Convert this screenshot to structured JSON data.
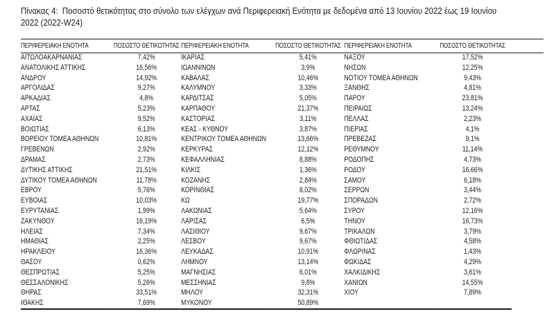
{
  "caption": {
    "line1": "Πίνακας 4:  Ποσοστό θετικότητας στο σύνολο των ελέγχων ανά Περιφερειακή Ενότητα με δεδομένα από 13 Ιουνίου 2022 έως 19 Ιουνίου",
    "line2": "2022 (2022-W24)"
  },
  "colors": {
    "text": "#1b1b1b",
    "rule": "#1b1b1b",
    "background": "#ffffff"
  },
  "table": {
    "header": {
      "region": "ΠΕΡΙΦΕΡΕΙΑΚΗ ΕΝΟΤΗΤΑ",
      "rate": "ΠΟΣΟΣΤΟ ΘΕΤΙΚΟΤΗΤΑΣ"
    },
    "columns": [
      [
        {
          "region": "ΑΙΤΩΛΟΑΚΑΡΝΑΝΙΑΣ",
          "rate": "7,42%"
        },
        {
          "region": "ΑΝΑΤΟΛΙΚΗΣ ΑΤΤΙΚΗΣ",
          "rate": "16,56%"
        },
        {
          "region": "ΑΝΔΡΟΥ",
          "rate": "14,92%"
        },
        {
          "region": "ΑΡΓΟΛΙΔΑΣ",
          "rate": "9,27%"
        },
        {
          "region": "ΑΡΚΑΔΙΑΣ",
          "rate": "4,8%"
        },
        {
          "region": "ΑΡΤΑΣ",
          "rate": "5,23%"
        },
        {
          "region": "ΑΧΑΪΑΣ",
          "rate": "9,52%"
        },
        {
          "region": "ΒΟΙΩΤΙΑΣ",
          "rate": "6,13%"
        },
        {
          "region": "ΒΟΡΕΙΟΥ ΤΟΜΕΑ ΑΘΗΝΩΝ",
          "rate": "10,81%"
        },
        {
          "region": "ΓΡΕΒΕΝΩΝ",
          "rate": "2,92%"
        },
        {
          "region": "ΔΡΑΜΑΣ",
          "rate": "2,73%"
        },
        {
          "region": "ΔΥΤΙΚΗΣ ΑΤΤΙΚΗΣ",
          "rate": "21,51%"
        },
        {
          "region": "ΔΥΤΙΚΟΥ ΤΟΜΕΑ ΑΘΗΝΩΝ",
          "rate": "11,78%"
        },
        {
          "region": "ΕΒΡΟΥ",
          "rate": "5,76%"
        },
        {
          "region": "ΕΥΒΟΙΑΣ",
          "rate": "10,03%"
        },
        {
          "region": "ΕΥΡΥΤΑΝΙΑΣ",
          "rate": "1,99%"
        },
        {
          "region": "ΖΑΚΥΝΘΟΥ",
          "rate": "16,19%"
        },
        {
          "region": "ΗΛΕΙΑΣ",
          "rate": "7,34%"
        },
        {
          "region": "ΗΜΑΘΙΑΣ",
          "rate": "2,25%"
        },
        {
          "region": "ΗΡΑΚΛΕΙΟΥ",
          "rate": "16,36%"
        },
        {
          "region": "ΘΑΣΟΥ",
          "rate": "0,62%"
        },
        {
          "region": "ΘΕΣΠΡΩΤΙΑΣ",
          "rate": "5,25%"
        },
        {
          "region": "ΘΕΣΣΑΛΟΝΙΚΗΣ",
          "rate": "5,26%"
        },
        {
          "region": "ΘΗΡΑΣ",
          "rate": "33,51%"
        },
        {
          "region": "ΙΘΑΚΗΣ",
          "rate": "7,69%"
        }
      ],
      [
        {
          "region": "ΙΚΑΡΙΑΣ",
          "rate": "5,41%"
        },
        {
          "region": "ΙΩΑΝΝΙΝΩΝ",
          "rate": "3,9%"
        },
        {
          "region": "ΚΑΒΑΛΑΣ",
          "rate": "10,46%"
        },
        {
          "region": "ΚΑΛΥΜΝΟΥ",
          "rate": "3,33%"
        },
        {
          "region": "ΚΑΡΔΙΤΣΑΣ",
          "rate": "5,05%"
        },
        {
          "region": "ΚΑΡΠΑΘΟΥ",
          "rate": "21,37%"
        },
        {
          "region": "ΚΑΣΤΟΡΙΑΣ",
          "rate": "3,11%"
        },
        {
          "region": "ΚΕΑΣ - ΚΥΘΝΟΥ",
          "rate": "3,87%"
        },
        {
          "region": "ΚΕΝΤΡΙΚΟΥ ΤΟΜΕΑ ΑΘΗΝΩΝ",
          "rate": "13,66%"
        },
        {
          "region": "ΚΕΡΚΥΡΑΣ",
          "rate": "12,12%"
        },
        {
          "region": "ΚΕΦΑΛΛΗΝΙΑΣ",
          "rate": "8,88%"
        },
        {
          "region": "ΚΙΛΚΙΣ",
          "rate": "1,36%"
        },
        {
          "region": "ΚΟΖΑΝΗΣ",
          "rate": "2,84%"
        },
        {
          "region": "ΚΟΡΙΝΘΙΑΣ",
          "rate": "8,02%"
        },
        {
          "region": "ΚΩ",
          "rate": "19,77%"
        },
        {
          "region": "ΛΑΚΩΝΙΑΣ",
          "rate": "5,64%"
        },
        {
          "region": "ΛΑΡΙΣΑΣ",
          "rate": "6,5%"
        },
        {
          "region": "ΛΑΣΙΘΙΟΥ",
          "rate": "9,67%"
        },
        {
          "region": "ΛΕΣΒΟΥ",
          "rate": "9,67%"
        },
        {
          "region": "ΛΕΥΚΑΔΑΣ",
          "rate": "10,91%"
        },
        {
          "region": "ΛΗΜΝΟΥ",
          "rate": "13,14%"
        },
        {
          "region": "ΜΑΓΝΗΣΙΑΣ",
          "rate": "6,01%"
        },
        {
          "region": "ΜΕΣΣΗΝΙΑΣ",
          "rate": "9,8%"
        },
        {
          "region": "ΜΗΛΟΥ",
          "rate": "32,31%"
        },
        {
          "region": "ΜΥΚΟΝΟΥ",
          "rate": "50,89%"
        }
      ],
      [
        {
          "region": "ΝΑΞΟΥ",
          "rate": "17,52%"
        },
        {
          "region": "ΝΗΣΩΝ",
          "rate": "12,25%"
        },
        {
          "region": "ΝΟΤΙΟΥ ΤΟΜΕΑ ΑΘΗΝΩΝ",
          "rate": "9,43%"
        },
        {
          "region": "ΞΑΝΘΗΣ",
          "rate": "4,81%"
        },
        {
          "region": "ΠΑΡΟΥ",
          "rate": "23,81%"
        },
        {
          "region": "ΠΕΙΡΑΙΩΣ",
          "rate": "13,24%"
        },
        {
          "region": "ΠΕΛΛΑΣ",
          "rate": "2,23%"
        },
        {
          "region": "ΠΙΕΡΙΑΣ",
          "rate": "4,1%"
        },
        {
          "region": "ΠΡΕΒΕΖΑΣ",
          "rate": "9,1%"
        },
        {
          "region": "ΡΕΘΥΜΝΟΥ",
          "rate": "11,14%"
        },
        {
          "region": "ΡΟΔΟΠΗΣ",
          "rate": "4,73%"
        },
        {
          "region": "ΡΟΔΟΥ",
          "rate": "16,66%"
        },
        {
          "region": "ΣΑΜΟΥ",
          "rate": "6,18%"
        },
        {
          "region": "ΣΕΡΡΩΝ",
          "rate": "3,44%"
        },
        {
          "region": "ΣΠΟΡΑΔΩΝ",
          "rate": "2,72%"
        },
        {
          "region": "ΣΥΡΟΥ",
          "rate": "12,16%"
        },
        {
          "region": "ΤΗΝΟΥ",
          "rate": "16,73%"
        },
        {
          "region": "ΤΡΙΚΑΛΩΝ",
          "rate": "3,79%"
        },
        {
          "region": "ΦΘΙΩΤΙΔΑΣ",
          "rate": "4,58%"
        },
        {
          "region": "ΦΛΩΡΙΝΑΣ",
          "rate": "1,43%"
        },
        {
          "region": "ΦΩΚΙΔΑΣ",
          "rate": "4,29%"
        },
        {
          "region": "ΧΑΛΚΙΔΙΚΗΣ",
          "rate": "3,61%"
        },
        {
          "region": "ΧΑΝΙΩΝ",
          "rate": "14,55%"
        },
        {
          "region": "ΧΙΟΥ",
          "rate": "7,89%"
        }
      ]
    ]
  }
}
